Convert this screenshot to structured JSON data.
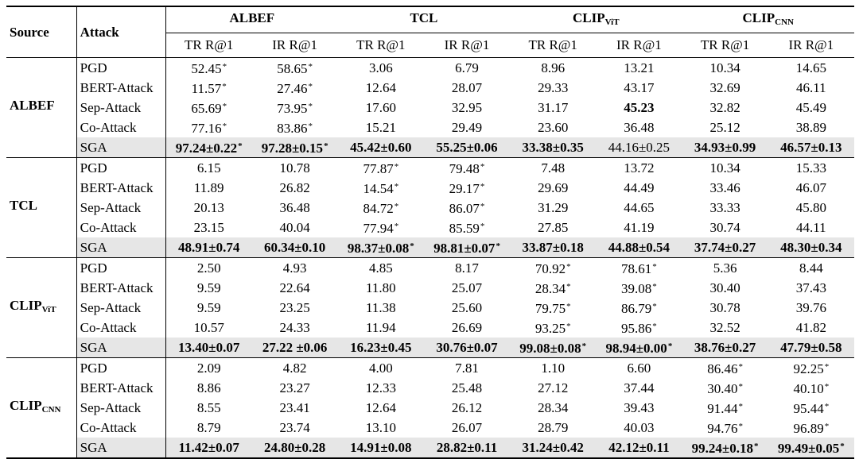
{
  "header": {
    "source_label": "Source",
    "attack_label": "Attack",
    "models": [
      {
        "name": "ALBEF",
        "sub": ""
      },
      {
        "name": "TCL",
        "sub": ""
      },
      {
        "name": "CLIP",
        "sub": "ViT"
      },
      {
        "name": "CLIP",
        "sub": "CNN"
      }
    ],
    "metrics": [
      "TR R@1",
      "IR R@1"
    ]
  },
  "chart_data": {
    "type": "table",
    "columns": [
      "ALBEF TR R@1",
      "ALBEF IR R@1",
      "TCL TR R@1",
      "TCL IR R@1",
      "CLIP_ViT TR R@1",
      "CLIP_ViT IR R@1",
      "CLIP_CNN TR R@1",
      "CLIP_CNN IR R@1"
    ],
    "groups": [
      {
        "source": "ALBEF",
        "source_sub": "",
        "rows": [
          {
            "attack": "PGD",
            "cells": [
              {
                "v": "52.45",
                "star": true
              },
              {
                "v": "58.65",
                "star": true
              },
              {
                "v": "3.06"
              },
              {
                "v": "6.79"
              },
              {
                "v": "8.96"
              },
              {
                "v": "13.21"
              },
              {
                "v": "10.34"
              },
              {
                "v": "14.65"
              }
            ]
          },
          {
            "attack": "BERT-Attack",
            "cells": [
              {
                "v": "11.57",
                "star": true
              },
              {
                "v": "27.46",
                "star": true
              },
              {
                "v": "12.64"
              },
              {
                "v": "28.07"
              },
              {
                "v": "29.33"
              },
              {
                "v": "43.17"
              },
              {
                "v": "32.69"
              },
              {
                "v": "46.11"
              }
            ]
          },
          {
            "attack": "Sep-Attack",
            "cells": [
              {
                "v": "65.69",
                "star": true
              },
              {
                "v": "73.95",
                "star": true
              },
              {
                "v": "17.60"
              },
              {
                "v": "32.95"
              },
              {
                "v": "31.17"
              },
              {
                "v": "45.23",
                "bold": true
              },
              {
                "v": "32.82"
              },
              {
                "v": "45.49"
              }
            ]
          },
          {
            "attack": "Co-Attack",
            "cells": [
              {
                "v": "77.16",
                "star": true
              },
              {
                "v": "83.86",
                "star": true
              },
              {
                "v": "15.21"
              },
              {
                "v": "29.49"
              },
              {
                "v": "23.60"
              },
              {
                "v": "36.48"
              },
              {
                "v": "25.12"
              },
              {
                "v": "38.89"
              }
            ]
          },
          {
            "attack": "SGA",
            "sga": true,
            "cells": [
              {
                "v": "97.24±0.22",
                "star": true,
                "bold": true
              },
              {
                "v": "97.28±0.15",
                "star": true,
                "bold": true
              },
              {
                "v": "45.42±0.60",
                "bold": true
              },
              {
                "v": "55.25±0.06",
                "bold": true
              },
              {
                "v": "33.38±0.35",
                "bold": true
              },
              {
                "v": "44.16±0.25"
              },
              {
                "v": "34.93±0.99",
                "bold": true
              },
              {
                "v": "46.57±0.13",
                "bold": true
              }
            ]
          }
        ]
      },
      {
        "source": "TCL",
        "source_sub": "",
        "rows": [
          {
            "attack": "PGD",
            "cells": [
              {
                "v": "6.15"
              },
              {
                "v": "10.78"
              },
              {
                "v": "77.87",
                "star": true
              },
              {
                "v": "79.48",
                "star": true
              },
              {
                "v": "7.48"
              },
              {
                "v": "13.72"
              },
              {
                "v": "10.34"
              },
              {
                "v": "15.33"
              }
            ]
          },
          {
            "attack": "BERT-Attack",
            "cells": [
              {
                "v": "11.89"
              },
              {
                "v": "26.82"
              },
              {
                "v": "14.54",
                "star": true
              },
              {
                "v": "29.17",
                "star": true
              },
              {
                "v": "29.69"
              },
              {
                "v": "44.49"
              },
              {
                "v": "33.46"
              },
              {
                "v": "46.07"
              }
            ]
          },
          {
            "attack": "Sep-Attack",
            "cells": [
              {
                "v": "20.13"
              },
              {
                "v": "36.48"
              },
              {
                "v": "84.72",
                "star": true
              },
              {
                "v": "86.07",
                "star": true
              },
              {
                "v": "31.29"
              },
              {
                "v": "44.65"
              },
              {
                "v": "33.33"
              },
              {
                "v": "45.80"
              }
            ]
          },
          {
            "attack": "Co-Attack",
            "cells": [
              {
                "v": "23.15"
              },
              {
                "v": "40.04"
              },
              {
                "v": "77.94",
                "star": true
              },
              {
                "v": "85.59",
                "star": true
              },
              {
                "v": "27.85"
              },
              {
                "v": "41.19"
              },
              {
                "v": "30.74"
              },
              {
                "v": "44.11"
              }
            ]
          },
          {
            "attack": "SGA",
            "sga": true,
            "cells": [
              {
                "v": "48.91±0.74",
                "bold": true
              },
              {
                "v": "60.34±0.10",
                "bold": true
              },
              {
                "v": "98.37±0.08",
                "star": true,
                "bold": true
              },
              {
                "v": "98.81±0.07",
                "star": true,
                "bold": true
              },
              {
                "v": "33.87±0.18",
                "bold": true
              },
              {
                "v": "44.88±0.54",
                "bold": true
              },
              {
                "v": "37.74±0.27",
                "bold": true
              },
              {
                "v": "48.30±0.34",
                "bold": true
              }
            ]
          }
        ]
      },
      {
        "source": "CLIP",
        "source_sub": "ViT",
        "rows": [
          {
            "attack": "PGD",
            "cells": [
              {
                "v": "2.50"
              },
              {
                "v": "4.93"
              },
              {
                "v": "4.85"
              },
              {
                "v": "8.17"
              },
              {
                "v": "70.92",
                "star": true
              },
              {
                "v": "78.61",
                "star": true
              },
              {
                "v": "5.36"
              },
              {
                "v": "8.44"
              }
            ]
          },
          {
            "attack": "BERT-Attack",
            "cells": [
              {
                "v": "9.59"
              },
              {
                "v": "22.64"
              },
              {
                "v": "11.80"
              },
              {
                "v": "25.07"
              },
              {
                "v": "28.34",
                "star": true
              },
              {
                "v": "39.08",
                "star": true
              },
              {
                "v": "30.40"
              },
              {
                "v": "37.43"
              }
            ]
          },
          {
            "attack": "Sep-Attack",
            "cells": [
              {
                "v": "9.59"
              },
              {
                "v": "23.25"
              },
              {
                "v": "11.38"
              },
              {
                "v": "25.60"
              },
              {
                "v": "79.75",
                "star": true
              },
              {
                "v": "86.79",
                "star": true
              },
              {
                "v": "30.78"
              },
              {
                "v": "39.76"
              }
            ]
          },
          {
            "attack": "Co-Attack",
            "cells": [
              {
                "v": "10.57"
              },
              {
                "v": "24.33"
              },
              {
                "v": "11.94"
              },
              {
                "v": "26.69"
              },
              {
                "v": "93.25",
                "star": true
              },
              {
                "v": "95.86",
                "star": true
              },
              {
                "v": "32.52"
              },
              {
                "v": "41.82"
              }
            ]
          },
          {
            "attack": "SGA",
            "sga": true,
            "cells": [
              {
                "v": "13.40±0.07",
                "bold": true
              },
              {
                "v": "27.22 ±0.06",
                "bold": true
              },
              {
                "v": "16.23±0.45",
                "bold": true
              },
              {
                "v": "30.76±0.07",
                "bold": true
              },
              {
                "v": "99.08±0.08",
                "star": true,
                "bold": true
              },
              {
                "v": "98.94±0.00",
                "star": true,
                "bold": true
              },
              {
                "v": "38.76±0.27",
                "bold": true
              },
              {
                "v": "47.79±0.58",
                "bold": true
              }
            ]
          }
        ]
      },
      {
        "source": "CLIP",
        "source_sub": "CNN",
        "rows": [
          {
            "attack": "PGD",
            "cells": [
              {
                "v": "2.09"
              },
              {
                "v": "4.82"
              },
              {
                "v": "4.00"
              },
              {
                "v": "7.81"
              },
              {
                "v": "1.10"
              },
              {
                "v": "6.60"
              },
              {
                "v": "86.46",
                "star": true
              },
              {
                "v": "92.25",
                "star": true
              }
            ]
          },
          {
            "attack": "BERT-Attack",
            "cells": [
              {
                "v": "8.86"
              },
              {
                "v": "23.27"
              },
              {
                "v": "12.33"
              },
              {
                "v": "25.48"
              },
              {
                "v": "27.12"
              },
              {
                "v": "37.44"
              },
              {
                "v": "30.40",
                "star": true
              },
              {
                "v": "40.10",
                "star": true
              }
            ]
          },
          {
            "attack": "Sep-Attack",
            "cells": [
              {
                "v": "8.55"
              },
              {
                "v": "23.41"
              },
              {
                "v": "12.64"
              },
              {
                "v": "26.12"
              },
              {
                "v": "28.34"
              },
              {
                "v": "39.43"
              },
              {
                "v": "91.44",
                "star": true
              },
              {
                "v": "95.44",
                "star": true
              }
            ]
          },
          {
            "attack": "Co-Attack",
            "cells": [
              {
                "v": "8.79"
              },
              {
                "v": "23.74"
              },
              {
                "v": "13.10"
              },
              {
                "v": "26.07"
              },
              {
                "v": "28.79"
              },
              {
                "v": "40.03"
              },
              {
                "v": "94.76",
                "star": true
              },
              {
                "v": "96.89",
                "star": true
              }
            ]
          },
          {
            "attack": "SGA",
            "sga": true,
            "cells": [
              {
                "v": "11.42±0.07",
                "bold": true
              },
              {
                "v": "24.80±0.28",
                "bold": true
              },
              {
                "v": "14.91±0.08",
                "bold": true
              },
              {
                "v": "28.82±0.11",
                "bold": true
              },
              {
                "v": "31.24±0.42",
                "bold": true
              },
              {
                "v": "42.12±0.11",
                "bold": true
              },
              {
                "v": "99.24±0.18",
                "star": true,
                "bold": true
              },
              {
                "v": "99.49±0.05",
                "star": true,
                "bold": true
              }
            ]
          }
        ]
      }
    ]
  }
}
